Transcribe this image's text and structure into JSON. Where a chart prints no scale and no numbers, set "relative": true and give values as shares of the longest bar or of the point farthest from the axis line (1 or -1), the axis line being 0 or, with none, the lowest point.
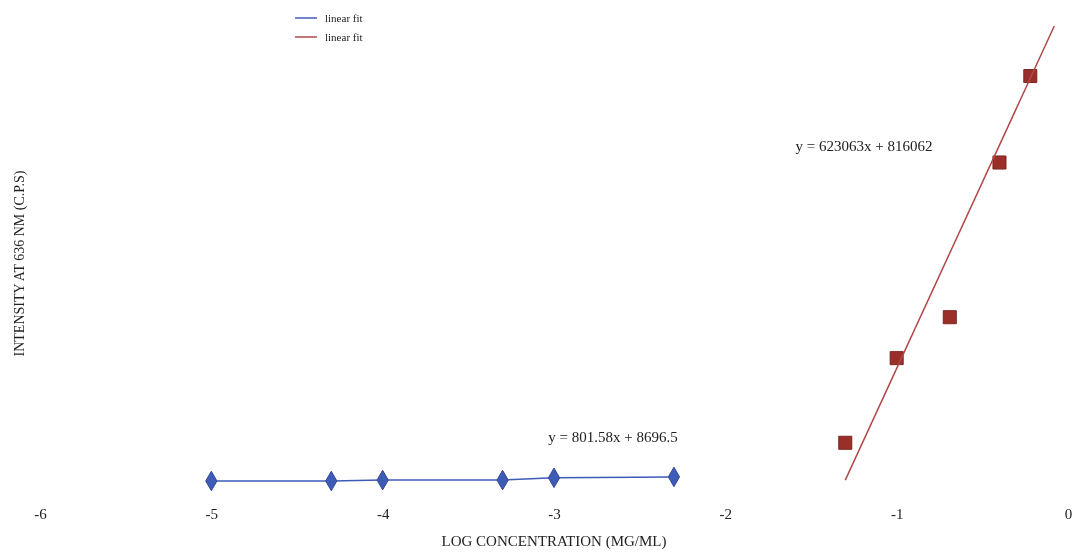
{
  "chart_data": {
    "type": "line",
    "relative": true,
    "xlabel": "LOG CONCENTRATION (MG/ML)",
    "ylabel": "INTENSITY AT 636 NM (C.P.S)",
    "xlim": [
      -6,
      0
    ],
    "xticks": [
      -6,
      -5,
      -4,
      -3,
      -2,
      -1,
      0
    ],
    "legend": "top left",
    "grid": false,
    "series": [
      {
        "name": "linear fit",
        "color": "#3f5bb8",
        "marker": "diamond",
        "x": [
          -5,
          -4.3,
          -4,
          -3.3,
          -3,
          -2.3
        ],
        "values": [
          0,
          0,
          0.002,
          0.002,
          0.007,
          0.009
        ]
      },
      {
        "type": "scatter",
        "color": "#9a2f2a",
        "marker": "square",
        "x": [
          -1.3,
          -1,
          -0.69,
          -0.4,
          -0.22
        ],
        "values": [
          0.084,
          0.27,
          0.36,
          0.7,
          0.89
        ]
      },
      {
        "type": "line",
        "name": "linear fit",
        "color": "#b04848",
        "marker": "none",
        "x": [
          -1.3,
          -0.08
        ],
        "values": [
          0.002,
          1
        ]
      }
    ],
    "annotations": [
      "y = 801.58x + 8696.5",
      "y = 623063x + 816062"
    ]
  }
}
